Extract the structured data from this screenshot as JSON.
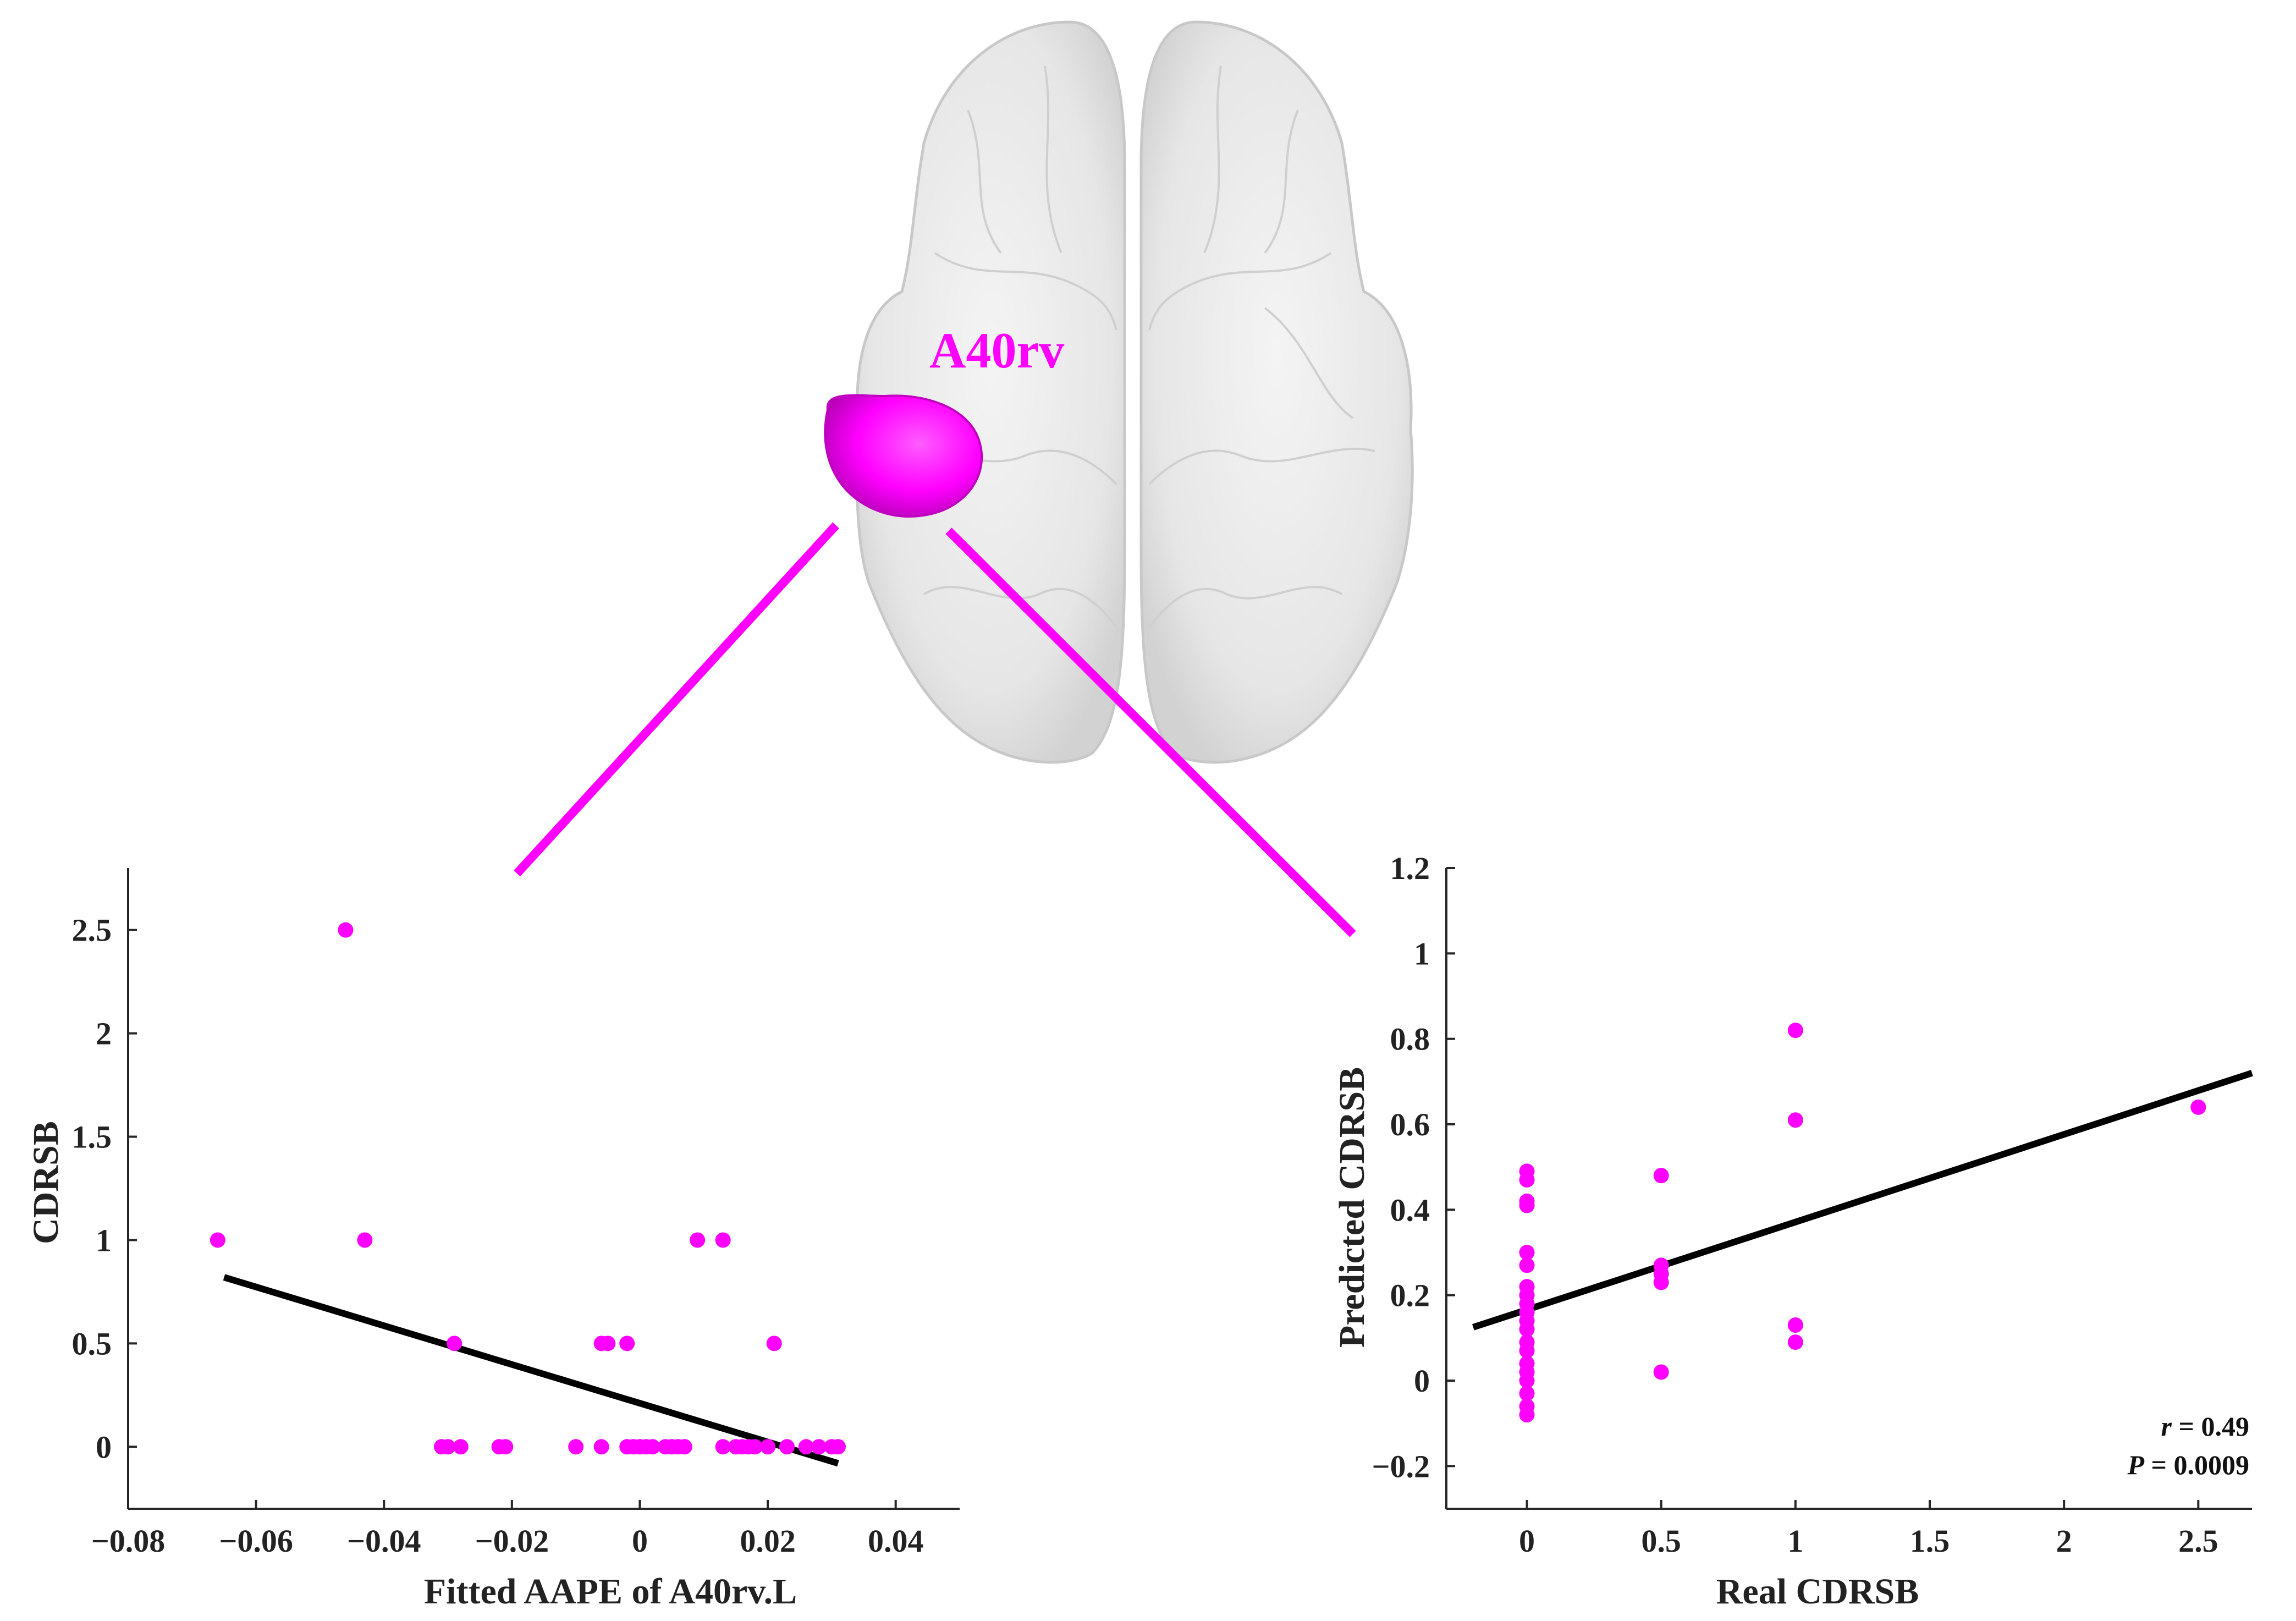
{
  "brain": {
    "region_label": "A40rv",
    "highlight_color": "#ff00ff",
    "connector_color": "#ff00ff",
    "left_hemisphere": "brain-left-hemisphere",
    "right_hemisphere": "brain-right-hemisphere"
  },
  "chart_data": [
    {
      "id": "left",
      "type": "scatter",
      "title": "",
      "xlabel": "Fitted AAPE of A40rv.L",
      "ylabel": "CDRSB",
      "xlim": [
        -0.08,
        0.05
      ],
      "ylim": [
        -0.3,
        2.8
      ],
      "xticks": [
        -0.08,
        -0.06,
        -0.04,
        -0.02,
        0,
        0.02,
        0.04
      ],
      "xtick_labels": [
        "−0.08",
        "−0.06",
        "−0.04",
        "−0.02",
        "0",
        "0.02",
        "0.04"
      ],
      "yticks": [
        0,
        0.5,
        1,
        1.5,
        2,
        2.5
      ],
      "ytick_labels": [
        "0",
        "0.5",
        "1",
        "1.5",
        "2",
        "2.5"
      ],
      "grid": false,
      "marker_color": "#ff00ff",
      "fit_color": "#000000",
      "points": [
        [
          -0.066,
          1
        ],
        [
          -0.046,
          2.5
        ],
        [
          -0.043,
          1
        ],
        [
          -0.029,
          0.5
        ],
        [
          -0.006,
          0.5
        ],
        [
          -0.005,
          0.5
        ],
        [
          -0.002,
          0.5
        ],
        [
          0.009,
          1
        ],
        [
          0.013,
          1
        ],
        [
          0.021,
          0.5
        ],
        [
          -0.031,
          0
        ],
        [
          -0.03,
          0
        ],
        [
          -0.028,
          0
        ],
        [
          -0.022,
          0
        ],
        [
          -0.021,
          0
        ],
        [
          -0.01,
          0
        ],
        [
          -0.006,
          0
        ],
        [
          -0.002,
          0
        ],
        [
          -0.001,
          0
        ],
        [
          0.0,
          0
        ],
        [
          0.001,
          0
        ],
        [
          0.002,
          0
        ],
        [
          0.004,
          0
        ],
        [
          0.005,
          0
        ],
        [
          0.006,
          0
        ],
        [
          0.007,
          0
        ],
        [
          0.013,
          0
        ],
        [
          0.015,
          0
        ],
        [
          0.016,
          0
        ],
        [
          0.017,
          0
        ],
        [
          0.018,
          0
        ],
        [
          0.02,
          0
        ],
        [
          0.023,
          0
        ],
        [
          0.026,
          0
        ],
        [
          0.028,
          0
        ],
        [
          0.03,
          0
        ],
        [
          0.031,
          0
        ]
      ],
      "fit_line": [
        [
          -0.065,
          0.82
        ],
        [
          0.031,
          -0.08
        ]
      ]
    },
    {
      "id": "right",
      "type": "scatter",
      "title": "",
      "xlabel": "Real CDRSB",
      "ylabel": "Predicted CDRSB",
      "xlim": [
        -0.3,
        2.7
      ],
      "ylim": [
        -0.3,
        1.2
      ],
      "xticks": [
        0,
        0.5,
        1,
        1.5,
        2,
        2.5
      ],
      "xtick_labels": [
        "0",
        "0.5",
        "1",
        "1.5",
        "2",
        "2.5"
      ],
      "yticks": [
        -0.2,
        0,
        0.2,
        0.4,
        0.6,
        0.8,
        1,
        1.2
      ],
      "ytick_labels": [
        "−0.2",
        "0",
        "0.2",
        "0.4",
        "0.6",
        "0.8",
        "1",
        "1.2"
      ],
      "grid": false,
      "marker_color": "#ff00ff",
      "fit_color": "#000000",
      "points": [
        [
          0,
          0.49
        ],
        [
          0,
          0.47
        ],
        [
          0,
          0.42
        ],
        [
          0,
          0.41
        ],
        [
          0,
          0.3
        ],
        [
          0,
          0.27
        ],
        [
          0,
          0.22
        ],
        [
          0,
          0.2
        ],
        [
          0,
          0.18
        ],
        [
          0,
          0.16
        ],
        [
          0,
          0.14
        ],
        [
          0,
          0.12
        ],
        [
          0,
          0.09
        ],
        [
          0,
          0.07
        ],
        [
          0,
          0.04
        ],
        [
          0,
          0.02
        ],
        [
          0,
          0.0
        ],
        [
          0,
          -0.03
        ],
        [
          0,
          -0.06
        ],
        [
          0,
          -0.08
        ],
        [
          0.5,
          0.48
        ],
        [
          0.5,
          0.27
        ],
        [
          0.5,
          0.25
        ],
        [
          0.5,
          0.23
        ],
        [
          0.5,
          0.02
        ],
        [
          1,
          0.82
        ],
        [
          1,
          0.61
        ],
        [
          1,
          0.13
        ],
        [
          1,
          0.09
        ],
        [
          2.5,
          0.64
        ]
      ],
      "fit_line": [
        [
          -0.2,
          0.125
        ],
        [
          2.7,
          0.72
        ]
      ],
      "stats": {
        "r_label": "r",
        "r_value": " = 0.49",
        "p_label": "P",
        "p_value": " = 0.0009"
      },
      "legend_position": "bottom-right"
    }
  ]
}
